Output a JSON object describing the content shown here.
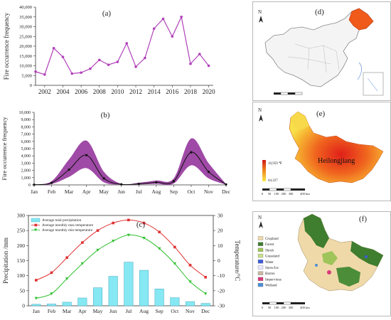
{
  "chart_data": [
    {
      "panel": "(a)",
      "type": "line",
      "ylabel": "Fire occurrence frequency",
      "x": [
        2001,
        2002,
        2003,
        2004,
        2005,
        2006,
        2007,
        2008,
        2009,
        2010,
        2011,
        2012,
        2013,
        2014,
        2015,
        2016,
        2017,
        2018,
        2019,
        2020
      ],
      "values": [
        7000,
        5500,
        19000,
        14500,
        6000,
        6500,
        8500,
        13000,
        10500,
        12000,
        21500,
        9500,
        14000,
        29000,
        34000,
        25000,
        35000,
        11000,
        16000,
        10000
      ],
      "ylim": [
        0,
        40000
      ],
      "yticks": [
        "0",
        "5,000",
        "10,000",
        "15,000",
        "20,000",
        "25,000",
        "30,000",
        "35,000",
        "40,000"
      ],
      "xticks": [
        "2002",
        "2004",
        "2006",
        "2008",
        "2010",
        "2012",
        "2014",
        "2016",
        "2018",
        "2020"
      ],
      "color": "#b040b8"
    },
    {
      "panel": "(b)",
      "type": "area",
      "ylabel": "Fire occurrence frequency",
      "categories": [
        "Jan",
        "Feb",
        "Mar",
        "Apr",
        "May",
        "Jun",
        "Jul",
        "Aug",
        "Sep",
        "Oct",
        "Nov",
        "Dec"
      ],
      "x": [
        1,
        2,
        3,
        4,
        5,
        6,
        7,
        8,
        9,
        10,
        11,
        12
      ],
      "series": [
        {
          "role": "mean",
          "values": [
            30,
            280,
            2100,
            4100,
            900,
            80,
            150,
            350,
            500,
            4500,
            1800,
            60
          ]
        },
        {
          "role": "upper",
          "values": [
            40,
            500,
            3500,
            6100,
            1800,
            150,
            300,
            600,
            900,
            6400,
            3000,
            100
          ]
        },
        {
          "role": "lower",
          "values": [
            20,
            120,
            1100,
            2300,
            350,
            30,
            60,
            150,
            200,
            2700,
            900,
            30
          ]
        }
      ],
      "ylim": [
        0,
        10000
      ],
      "yticks": [
        "0",
        "1,000",
        "2,000",
        "3,000",
        "4,000",
        "5,000",
        "6,000",
        "7,000",
        "8,000",
        "9,000",
        "10,000"
      ],
      "color": "#8e2a96"
    },
    {
      "panel": "(c)",
      "type": "bar",
      "categories": [
        "Jan",
        "Feb",
        "Mar",
        "Apr",
        "May",
        "Jun",
        "Jul",
        "Aug",
        "Sep",
        "Oct",
        "Nov",
        "Dec"
      ],
      "ylabel": "Precipitation /mm",
      "y2label": "Temperature/°C",
      "ylim": [
        0,
        300
      ],
      "y2lim": [
        -30,
        30
      ],
      "yticks": [
        "0",
        "50",
        "100",
        "150",
        "200",
        "250",
        "300"
      ],
      "y2ticks": [
        "30",
        "20",
        "10",
        "0",
        "-10",
        "-20",
        "-30"
      ],
      "legend": {
        "placement": "top-left",
        "precip": "Average total precipitation",
        "tmax": "Average monthly max temperature",
        "tmin": "Average monthly min temperature"
      },
      "series": [
        {
          "name": "Average total precipitation",
          "type": "bar",
          "values": [
            5,
            6,
            12,
            26,
            60,
            98,
            145,
            118,
            56,
            27,
            14,
            8
          ],
          "color": "#86e8f2"
        },
        {
          "name": "Average monthly max temperature",
          "type": "line",
          "values": [
            -13,
            -8,
            2,
            12,
            20,
            25,
            27,
            25,
            19,
            9,
            -3,
            -11
          ],
          "color": "#e03030"
        },
        {
          "name": "Average monthly min temperature",
          "type": "line",
          "values": [
            -25,
            -22,
            -12,
            -2,
            7,
            13,
            17,
            15,
            8,
            -2,
            -14,
            -22
          ],
          "color": "#30c030"
        }
      ]
    }
  ],
  "maps": {
    "d": {
      "label": "(d)",
      "north": "N"
    },
    "e": {
      "label": "(e)",
      "north": "N",
      "region": "Heilongjiang",
      "legend_high": "10,959 ℉",
      "legend_low": "64.227",
      "scale_labels": [
        "0",
        "50",
        "100",
        "200",
        "300",
        "400 km"
      ]
    },
    "f": {
      "label": "(f)",
      "north": "N",
      "legend": [
        "Cropland",
        "Forest",
        "Shrub",
        "Grassland",
        "Water",
        "Snow/Ice",
        "Barren",
        "Impervious",
        "Wetland"
      ],
      "legend_colors": [
        "#f0d9a8",
        "#3f7d2f",
        "#9ec45a",
        "#c7e08a",
        "#3b5bd6",
        "#e8e8ff",
        "#c9b8a6",
        "#d83b7a",
        "#4a8fd6"
      ],
      "scale_labels": [
        "0",
        "50",
        "100",
        "200",
        "300",
        "400 km"
      ]
    }
  }
}
